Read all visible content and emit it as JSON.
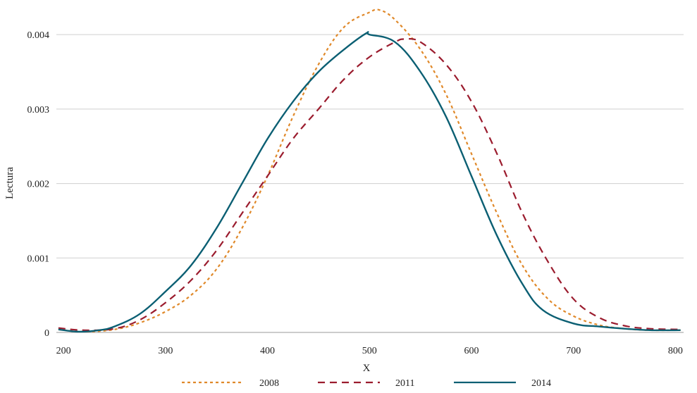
{
  "chart_data": {
    "type": "line",
    "title": "",
    "xlabel": "X",
    "ylabel": "Lectura",
    "xlim": [
      193,
      808
    ],
    "ylim": [
      0,
      0.0042
    ],
    "x_ticks": [
      200,
      300,
      400,
      500,
      600,
      700,
      800
    ],
    "x_tick_labels": [
      "200",
      "300",
      "400",
      "500",
      "600",
      "700",
      "800"
    ],
    "y_ticks": [
      0,
      0.001,
      0.002,
      0.003,
      0.004
    ],
    "y_tick_labels": [
      "0",
      "0.001",
      "0.002",
      "0.003",
      "0.004"
    ],
    "grid": "horizontal",
    "legend_position": "bottom",
    "series": [
      {
        "name": "2008",
        "color": "#e0892a",
        "dash": "dotted",
        "x": [
          195,
          220,
          250,
          275,
          300,
          325,
          350,
          375,
          400,
          425,
          450,
          475,
          500,
          510,
          525,
          550,
          575,
          600,
          625,
          650,
          675,
          700,
          725,
          750,
          775,
          805
        ],
        "y": [
          4e-05,
          1e-05,
          4e-05,
          0.00013,
          0.00028,
          0.0005,
          0.00085,
          0.0014,
          0.0021,
          0.0029,
          0.0036,
          0.0041,
          0.0043,
          0.00433,
          0.0042,
          0.0038,
          0.0032,
          0.0024,
          0.0016,
          0.0009,
          0.00045,
          0.00022,
          0.0001,
          5e-05,
          3e-05,
          3e-05
        ]
      },
      {
        "name": "2011",
        "color": "#9b1c2e",
        "dash": "dashed",
        "x": [
          195,
          220,
          250,
          275,
          300,
          325,
          350,
          375,
          400,
          425,
          450,
          475,
          500,
          525,
          535,
          550,
          575,
          600,
          625,
          650,
          675,
          700,
          725,
          750,
          775,
          805
        ],
        "y": [
          6e-05,
          3e-05,
          5e-05,
          0.00017,
          0.0004,
          0.0007,
          0.0011,
          0.0016,
          0.0021,
          0.0026,
          0.003,
          0.0034,
          0.0037,
          0.0039,
          0.00394,
          0.0039,
          0.0036,
          0.0031,
          0.0024,
          0.0016,
          0.00095,
          0.00045,
          0.0002,
          9e-05,
          5e-05,
          4e-05
        ]
      },
      {
        "name": "2014",
        "color": "#0b5f73",
        "dash": "solid",
        "x": [
          195,
          215,
          235,
          250,
          275,
          300,
          325,
          350,
          375,
          400,
          425,
          450,
          475,
          497,
          500,
          525,
          550,
          575,
          600,
          625,
          650,
          670,
          700,
          725,
          750,
          775,
          805
        ],
        "y": [
          4e-05,
          1e-05,
          3e-05,
          8e-05,
          0.00025,
          0.00055,
          0.0009,
          0.0014,
          0.002,
          0.0026,
          0.0031,
          0.0035,
          0.0038,
          0.00402,
          0.004,
          0.0039,
          0.0035,
          0.0029,
          0.0021,
          0.0013,
          0.00065,
          0.0003,
          0.00012,
          8e-05,
          5e-05,
          3e-05,
          3e-05
        ]
      }
    ]
  }
}
